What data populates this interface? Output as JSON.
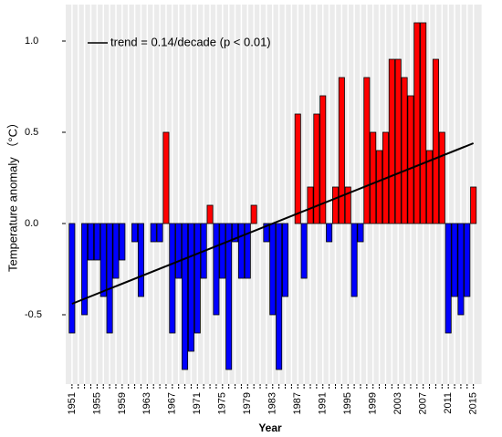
{
  "chart_data": {
    "type": "bar",
    "x": [
      1951,
      1952,
      1953,
      1954,
      1955,
      1956,
      1957,
      1958,
      1959,
      1960,
      1961,
      1962,
      1963,
      1964,
      1965,
      1966,
      1967,
      1968,
      1969,
      1970,
      1971,
      1972,
      1973,
      1974,
      1975,
      1976,
      1977,
      1978,
      1979,
      1980,
      1981,
      1982,
      1983,
      1984,
      1985,
      1986,
      1987,
      1988,
      1989,
      1990,
      1991,
      1992,
      1993,
      1994,
      1995,
      1996,
      1997,
      1998,
      1999,
      2000,
      2001,
      2002,
      2003,
      2004,
      2005,
      2006,
      2007,
      2008,
      2009,
      2010,
      2011,
      2012,
      2013,
      2014,
      2015
    ],
    "values": [
      -0.6,
      0,
      -0.5,
      -0.2,
      -0.2,
      -0.4,
      -0.6,
      -0.3,
      -0.2,
      0,
      -0.1,
      -0.4,
      0,
      -0.1,
      -0.1,
      0.5,
      -0.6,
      -0.3,
      -0.8,
      -0.7,
      -0.6,
      -0.3,
      0.1,
      -0.5,
      -0.3,
      -0.8,
      -0.1,
      -0.3,
      -0.3,
      0.1,
      0,
      -0.1,
      -0.5,
      -0.8,
      -0.4,
      0,
      0.6,
      -0.3,
      0.2,
      0.6,
      0.7,
      -0.1,
      0.2,
      0.8,
      0.2,
      -0.4,
      -0.1,
      0.8,
      0.5,
      0.4,
      0.5,
      0.9,
      0.9,
      0.8,
      0.7,
      1.1,
      1.1,
      0.4,
      0.9,
      0.5,
      -0.6,
      -0.4,
      -0.5,
      -0.4,
      0.2
    ],
    "positive_color": "#ff0000",
    "negative_color": "#0000ff",
    "trend_line": {
      "x": [
        1951,
        2015
      ],
      "values": [
        -0.44,
        0.44
      ],
      "color": "#000000"
    },
    "legend_text": "trend = 0.14/decade (p < 0.01)",
    "xlabel": "Year",
    "ylabel": "Temperature anomaly （°C）",
    "xlim": [
      1950,
      2016.3
    ],
    "ylim": [
      -0.88,
      1.2
    ],
    "xticks": [
      1951,
      1955,
      1959,
      1963,
      1967,
      1971,
      1975,
      1979,
      1983,
      1987,
      1991,
      1995,
      1999,
      2003,
      2007,
      2011,
      2015
    ],
    "yticks": [
      {
        "value": 1,
        "label": "1.0"
      },
      0.5,
      {
        "value": 0,
        "label": "0.0"
      },
      -0.5
    ],
    "grid": true
  }
}
